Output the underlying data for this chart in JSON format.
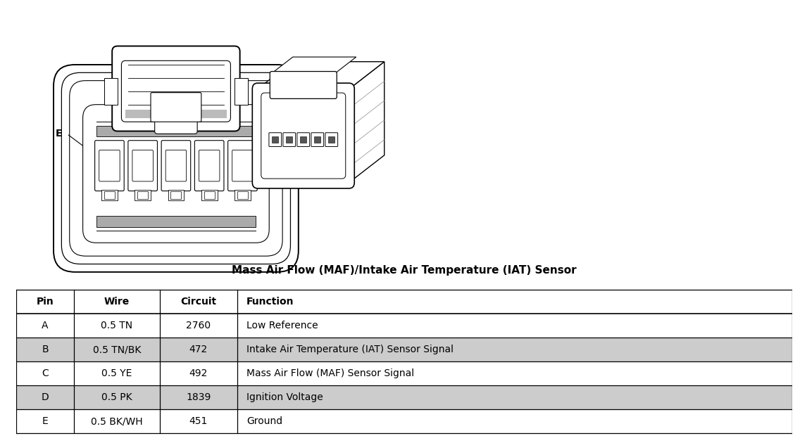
{
  "title": "Mass Air Flow (MAF)/Intake Air Temperature (IAT) Sensor",
  "table_headers": [
    "Pin",
    "Wire",
    "Circuit",
    "Function"
  ],
  "table_rows": [
    [
      "A",
      "0.5 TN",
      "2760",
      "Low Reference"
    ],
    [
      "B",
      "0.5 TN/BK",
      "472",
      "Intake Air Temperature (IAT) Sensor Signal"
    ],
    [
      "C",
      "0.5 YE",
      "492",
      "Mass Air Flow (MAF) Sensor Signal"
    ],
    [
      "D",
      "0.5 PK",
      "1839",
      "Ignition Voltage"
    ],
    [
      "E",
      "0.5 BK/WH",
      "451",
      "Ground"
    ]
  ],
  "shaded_rows": [
    1,
    3
  ],
  "bg_color": "#ffffff",
  "table_border_color": "#000000",
  "shade_color": "#cccccc",
  "header_font_size": 10,
  "row_font_size": 10,
  "title_font_size": 11
}
